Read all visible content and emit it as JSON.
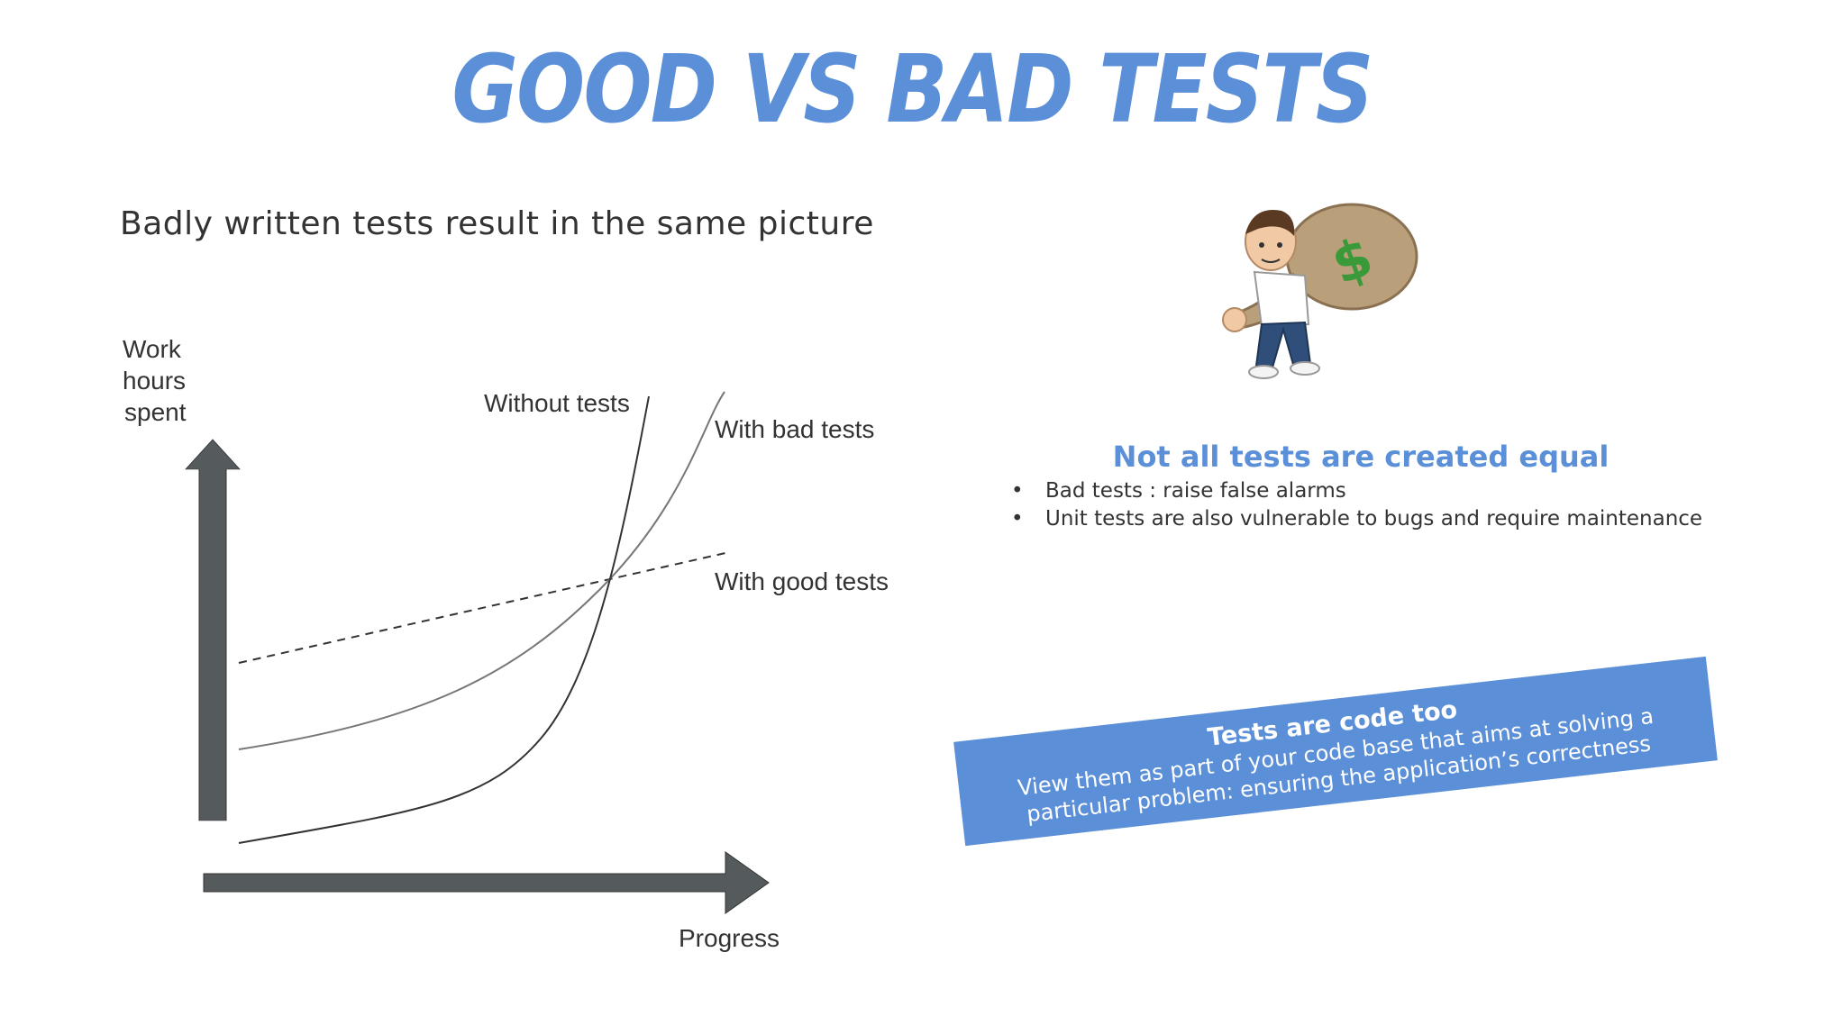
{
  "slide": {
    "title": "GOOD VS BAD TESTS",
    "subtitle": "Badly written tests result in the same picture"
  },
  "chart_data": {
    "type": "line",
    "ylabel": [
      "Work",
      "hours",
      "spent"
    ],
    "xlabel": "Progress",
    "series": [
      {
        "name": "Without tests",
        "style": "solid-dark"
      },
      {
        "name": "With bad tests",
        "style": "solid-gray"
      },
      {
        "name": "With good tests",
        "style": "dashed"
      }
    ],
    "grid": false,
    "ticks": false
  },
  "sidebar": {
    "avatar_icon": "avatar-with-money-bag-icon",
    "heading": "Not all tests are created equal",
    "bullets": [
      "Bad tests : raise false alarms",
      "Unit tests are also vulnerable to bugs and require maintenance"
    ],
    "banner": {
      "title": "Tests are code too",
      "text": "View them as part of your code base that aims at solving a particular problem: ensuring the application’s correctness"
    }
  },
  "colors": {
    "accent": "#5b8fd8",
    "axis": "#555a5c",
    "text": "#333333",
    "money": "#3a9a3a"
  }
}
